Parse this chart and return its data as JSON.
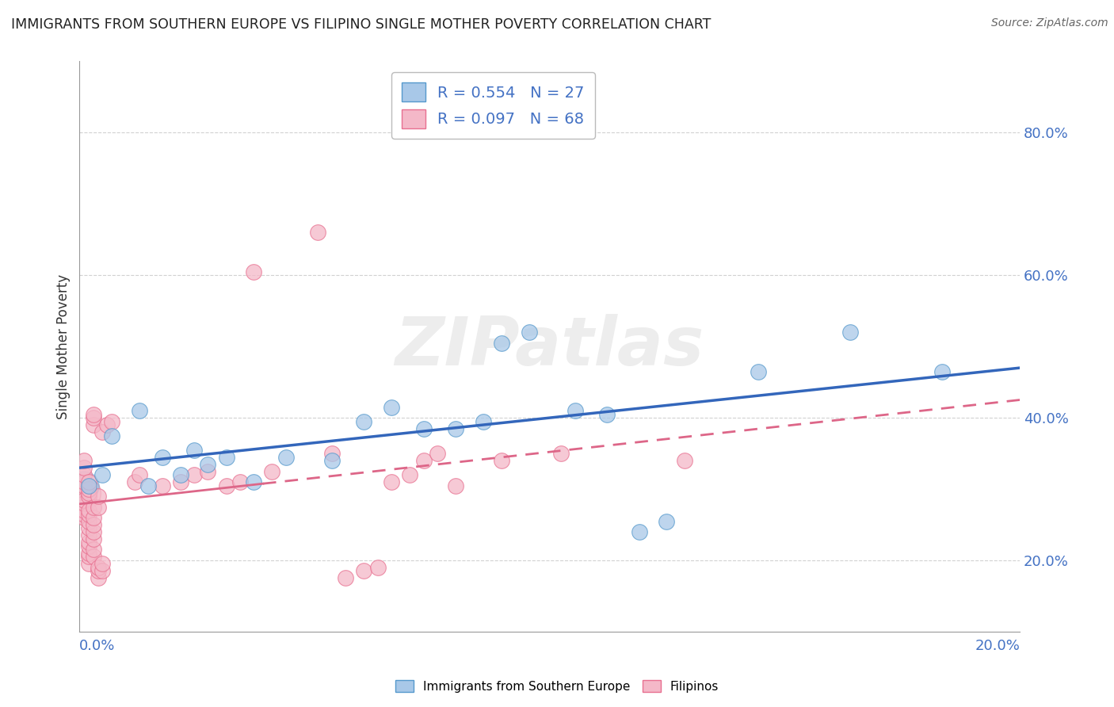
{
  "title": "IMMIGRANTS FROM SOUTHERN EUROPE VS FILIPINO SINGLE MOTHER POVERTY CORRELATION CHART",
  "source": "Source: ZipAtlas.com",
  "ylabel": "Single Mother Poverty",
  "legend_blue_r": "R = 0.554",
  "legend_blue_n": "N = 27",
  "legend_pink_r": "R = 0.097",
  "legend_pink_n": "N = 68",
  "legend_label_blue": "Immigrants from Southern Europe",
  "legend_label_pink": "Filipinos",
  "blue_color": "#a8c8e8",
  "pink_color": "#f4b8c8",
  "blue_edge_color": "#5599cc",
  "pink_edge_color": "#e87090",
  "blue_line_color": "#3366bb",
  "pink_line_color": "#dd6688",
  "watermark": "ZIPatlas",
  "blue_scatter": [
    [
      0.002,
      0.305
    ],
    [
      0.005,
      0.32
    ],
    [
      0.007,
      0.375
    ],
    [
      0.013,
      0.41
    ],
    [
      0.015,
      0.305
    ],
    [
      0.018,
      0.345
    ],
    [
      0.022,
      0.32
    ],
    [
      0.025,
      0.355
    ],
    [
      0.028,
      0.335
    ],
    [
      0.032,
      0.345
    ],
    [
      0.038,
      0.31
    ],
    [
      0.045,
      0.345
    ],
    [
      0.055,
      0.34
    ],
    [
      0.062,
      0.395
    ],
    [
      0.068,
      0.415
    ],
    [
      0.075,
      0.385
    ],
    [
      0.082,
      0.385
    ],
    [
      0.088,
      0.395
    ],
    [
      0.092,
      0.505
    ],
    [
      0.098,
      0.52
    ],
    [
      0.108,
      0.41
    ],
    [
      0.115,
      0.405
    ],
    [
      0.122,
      0.24
    ],
    [
      0.128,
      0.255
    ],
    [
      0.148,
      0.465
    ],
    [
      0.168,
      0.52
    ],
    [
      0.188,
      0.465
    ]
  ],
  "pink_scatter": [
    [
      0.001,
      0.295
    ],
    [
      0.001,
      0.305
    ],
    [
      0.001,
      0.31
    ],
    [
      0.001,
      0.32
    ],
    [
      0.001,
      0.33
    ],
    [
      0.001,
      0.34
    ],
    [
      0.001,
      0.26
    ],
    [
      0.001,
      0.265
    ],
    [
      0.001,
      0.27
    ],
    [
      0.001,
      0.28
    ],
    [
      0.001,
      0.285
    ],
    [
      0.002,
      0.29
    ],
    [
      0.002,
      0.295
    ],
    [
      0.002,
      0.3
    ],
    [
      0.002,
      0.31
    ],
    [
      0.002,
      0.195
    ],
    [
      0.002,
      0.205
    ],
    [
      0.002,
      0.21
    ],
    [
      0.002,
      0.22
    ],
    [
      0.002,
      0.225
    ],
    [
      0.002,
      0.235
    ],
    [
      0.002,
      0.245
    ],
    [
      0.002,
      0.255
    ],
    [
      0.002,
      0.265
    ],
    [
      0.002,
      0.27
    ],
    [
      0.003,
      0.205
    ],
    [
      0.003,
      0.215
    ],
    [
      0.003,
      0.23
    ],
    [
      0.003,
      0.24
    ],
    [
      0.003,
      0.25
    ],
    [
      0.003,
      0.26
    ],
    [
      0.003,
      0.275
    ],
    [
      0.003,
      0.39
    ],
    [
      0.003,
      0.4
    ],
    [
      0.003,
      0.405
    ],
    [
      0.004,
      0.175
    ],
    [
      0.004,
      0.185
    ],
    [
      0.004,
      0.19
    ],
    [
      0.004,
      0.275
    ],
    [
      0.004,
      0.29
    ],
    [
      0.005,
      0.185
    ],
    [
      0.005,
      0.195
    ],
    [
      0.005,
      0.38
    ],
    [
      0.006,
      0.39
    ],
    [
      0.007,
      0.395
    ],
    [
      0.012,
      0.31
    ],
    [
      0.013,
      0.32
    ],
    [
      0.018,
      0.305
    ],
    [
      0.022,
      0.31
    ],
    [
      0.025,
      0.32
    ],
    [
      0.028,
      0.325
    ],
    [
      0.032,
      0.305
    ],
    [
      0.035,
      0.31
    ],
    [
      0.038,
      0.605
    ],
    [
      0.042,
      0.325
    ],
    [
      0.052,
      0.66
    ],
    [
      0.055,
      0.35
    ],
    [
      0.058,
      0.175
    ],
    [
      0.062,
      0.185
    ],
    [
      0.065,
      0.19
    ],
    [
      0.068,
      0.31
    ],
    [
      0.072,
      0.32
    ],
    [
      0.075,
      0.34
    ],
    [
      0.078,
      0.35
    ],
    [
      0.082,
      0.305
    ],
    [
      0.092,
      0.34
    ],
    [
      0.105,
      0.35
    ],
    [
      0.132,
      0.34
    ]
  ],
  "pink_scatter_large": [
    [
      0.001,
      0.295
    ]
  ],
  "blue_scatter_large": [
    [
      0.001,
      0.305
    ]
  ],
  "xlim": [
    0.0,
    0.205
  ],
  "ylim": [
    0.1,
    0.9
  ],
  "right_yticks": [
    0.2,
    0.4,
    0.6,
    0.8
  ],
  "grid_yticks": [
    0.2,
    0.4,
    0.6,
    0.8
  ],
  "grid_color": "#cccccc",
  "background_color": "#ffffff",
  "tick_color": "#4472c4"
}
